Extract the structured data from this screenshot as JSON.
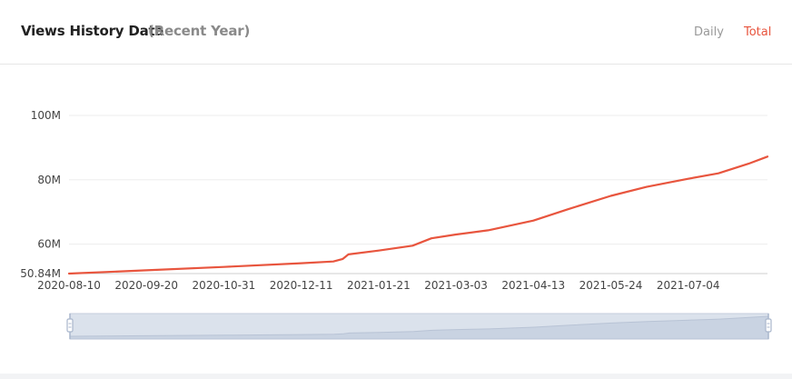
{
  "header": {
    "title": "Views History Data",
    "subtitle": "(Recent Year)",
    "tabs": [
      {
        "label": "Daily",
        "active": false
      },
      {
        "label": "Total",
        "active": true
      }
    ]
  },
  "colors": {
    "line": "#e8553e",
    "active_tab": "#e8553e",
    "inactive_tab": "#999999",
    "zoom_fill": "#dbe2ec",
    "zoom_handle": "#a9b6cc"
  },
  "chart_data": {
    "type": "line",
    "title": "",
    "xlabel": "",
    "ylabel": "",
    "ylim": [
      50.84,
      105
    ],
    "y_ticks": [
      {
        "value": 100,
        "label": "100M"
      },
      {
        "value": 80,
        "label": "80M"
      },
      {
        "value": 60,
        "label": "60M"
      },
      {
        "value": 50.84,
        "label": "50.84M"
      }
    ],
    "x_ticks": [
      "2020-08-10",
      "2020-09-20",
      "2020-10-31",
      "2020-12-11",
      "2021-01-21",
      "2021-03-03",
      "2021-04-13",
      "2021-05-24",
      "2021-07-04"
    ],
    "x_range": [
      "2020-08-10",
      "2021-08-15"
    ],
    "grid": true,
    "series": [
      {
        "name": "Total",
        "color": "#e8553e",
        "x": [
          "2020-08-10",
          "2020-09-20",
          "2020-10-31",
          "2020-12-11",
          "2020-12-28",
          "2021-01-02",
          "2021-01-05",
          "2021-01-21",
          "2021-02-08",
          "2021-02-18",
          "2021-03-03",
          "2021-03-20",
          "2021-04-13",
          "2021-05-01",
          "2021-05-24",
          "2021-06-12",
          "2021-07-04",
          "2021-07-20",
          "2021-08-05",
          "2021-08-15"
        ],
        "values": [
          50.84,
          51.85,
          52.9,
          54.05,
          54.6,
          55.4,
          56.8,
          58.0,
          59.5,
          61.8,
          63.0,
          64.3,
          67.3,
          70.8,
          75.0,
          77.8,
          80.3,
          82.0,
          85.0,
          87.2
        ]
      }
    ]
  },
  "zoom_slider": {
    "start_percent": 0,
    "end_percent": 100
  }
}
